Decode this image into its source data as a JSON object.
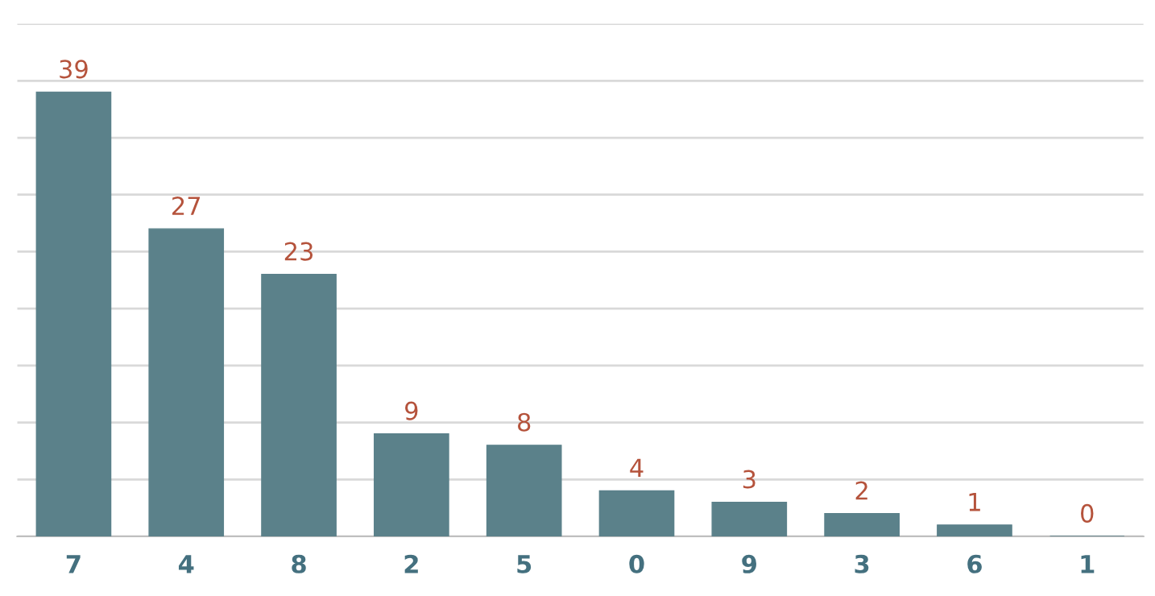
{
  "chart_data": {
    "type": "bar",
    "categories": [
      "7",
      "4",
      "8",
      "2",
      "5",
      "0",
      "9",
      "3",
      "6",
      "1"
    ],
    "values": [
      39,
      27,
      23,
      9,
      8,
      4,
      3,
      2,
      1,
      0
    ],
    "color": "#5b818a",
    "data_labels": true,
    "grid": "y",
    "tick_labels": "x",
    "ylim": [
      0,
      45
    ],
    "yticks": [
      {
        "value": 0,
        "label": null
      },
      {
        "value": 5,
        "label": null
      },
      {
        "value": 10,
        "label": null
      },
      {
        "value": 15,
        "label": null
      },
      {
        "value": 20,
        "label": null
      },
      {
        "value": 25,
        "label": null
      },
      {
        "value": 30,
        "label": null
      },
      {
        "value": 35,
        "label": null
      },
      {
        "value": 40,
        "label": null
      },
      {
        "value": 45,
        "label": null
      }
    ],
    "legend": false
  }
}
